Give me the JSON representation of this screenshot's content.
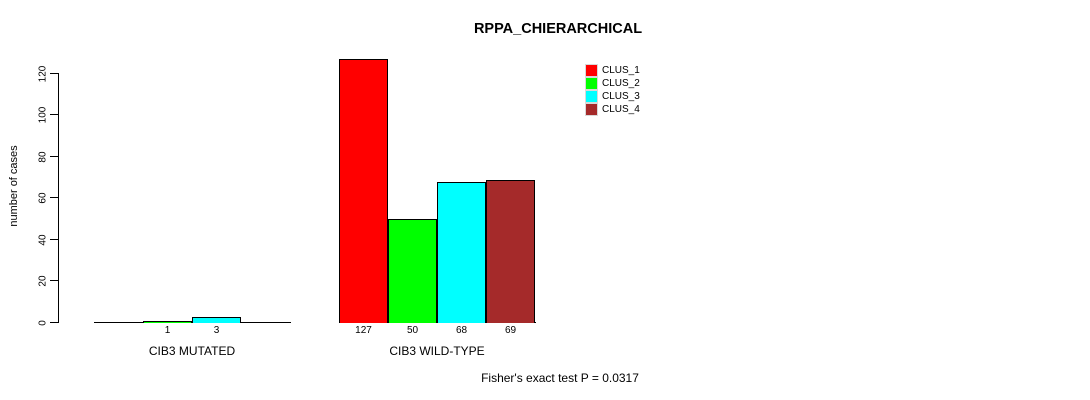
{
  "chart_data": {
    "type": "bar",
    "title": "RPPA_CHIERARCHICAL",
    "ylabel": "number of cases",
    "xlabel": "",
    "ylim": [
      0,
      127
    ],
    "yticks": [
      0,
      20,
      40,
      60,
      80,
      100,
      120
    ],
    "grid": false,
    "legend_position": "top-right-inside",
    "show_zero_value_labels": false,
    "categories": [
      "CIB3 MUTATED",
      "CIB3 WILD-TYPE"
    ],
    "series": [
      {
        "name": "CLUS_1",
        "color": "#ff0000",
        "values": [
          0,
          127
        ]
      },
      {
        "name": "CLUS_2",
        "color": "#00ff00",
        "values": [
          1,
          50
        ]
      },
      {
        "name": "CLUS_3",
        "color": "#00ffff",
        "values": [
          3,
          68
        ]
      },
      {
        "name": "CLUS_4",
        "color": "#a52a2a",
        "values": [
          0,
          69
        ]
      }
    ],
    "visible_bar_value_labels": [
      "1",
      "3",
      "127",
      "50",
      "68",
      "69"
    ],
    "annotation": "Fisher's exact test P = 0.0317"
  }
}
